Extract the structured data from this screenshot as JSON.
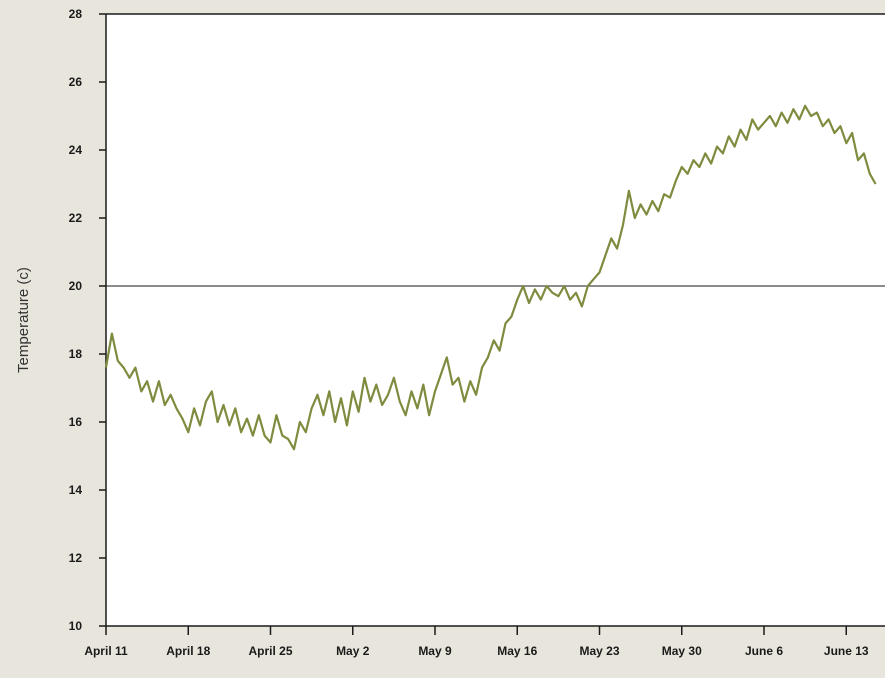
{
  "chart_data": {
    "type": "line",
    "title": "",
    "xlabel": "",
    "ylabel": "Temperature (c)",
    "ylim": [
      10,
      28
    ],
    "yticks": [
      10,
      12,
      14,
      16,
      18,
      20,
      22,
      24,
      26,
      28
    ],
    "reference_line_y": 20,
    "grid": false,
    "xlim": [
      "2010-04-11",
      "2010-06-15"
    ],
    "xticks": [
      {
        "date": "2010-04-11",
        "label": "April 11"
      },
      {
        "date": "2010-04-18",
        "label": "April 18"
      },
      {
        "date": "2010-04-25",
        "label": "April 25"
      },
      {
        "date": "2010-05-02",
        "label": "May 2"
      },
      {
        "date": "2010-05-09",
        "label": "May 9"
      },
      {
        "date": "2010-05-16",
        "label": "May 16"
      },
      {
        "date": "2010-05-23",
        "label": "May 23"
      },
      {
        "date": "2010-05-30",
        "label": "May 30"
      },
      {
        "date": "2010-06-06",
        "label": "June 6"
      },
      {
        "date": "2010-06-13",
        "label": "June 13"
      }
    ],
    "series": [
      {
        "color": "#7d8c3e",
        "points": [
          [
            "2010-04-11",
            17.6
          ],
          [
            "2010-04-11",
            18.6
          ],
          [
            "2010-04-12",
            17.8
          ],
          [
            "2010-04-12",
            17.6
          ],
          [
            "2010-04-13",
            17.3
          ],
          [
            "2010-04-13",
            17.6
          ],
          [
            "2010-04-14",
            16.9
          ],
          [
            "2010-04-14",
            17.2
          ],
          [
            "2010-04-15",
            16.6
          ],
          [
            "2010-04-15",
            17.2
          ],
          [
            "2010-04-16",
            16.5
          ],
          [
            "2010-04-16",
            16.8
          ],
          [
            "2010-04-17",
            16.4
          ],
          [
            "2010-04-17",
            16.1
          ],
          [
            "2010-04-18",
            15.7
          ],
          [
            "2010-04-18",
            16.4
          ],
          [
            "2010-04-19",
            15.9
          ],
          [
            "2010-04-19",
            16.6
          ],
          [
            "2010-04-20",
            16.9
          ],
          [
            "2010-04-20",
            16.0
          ],
          [
            "2010-04-21",
            16.5
          ],
          [
            "2010-04-21",
            15.9
          ],
          [
            "2010-04-22",
            16.4
          ],
          [
            "2010-04-22",
            15.7
          ],
          [
            "2010-04-23",
            16.1
          ],
          [
            "2010-04-23",
            15.6
          ],
          [
            "2010-04-24",
            16.2
          ],
          [
            "2010-04-24",
            15.6
          ],
          [
            "2010-04-25",
            15.4
          ],
          [
            "2010-04-25",
            16.2
          ],
          [
            "2010-04-26",
            15.6
          ],
          [
            "2010-04-26",
            15.5
          ],
          [
            "2010-04-27",
            15.2
          ],
          [
            "2010-04-27",
            16.0
          ],
          [
            "2010-04-28",
            15.7
          ],
          [
            "2010-04-28",
            16.4
          ],
          [
            "2010-04-29",
            16.8
          ],
          [
            "2010-04-29",
            16.2
          ],
          [
            "2010-04-30",
            16.9
          ],
          [
            "2010-04-30",
            16.0
          ],
          [
            "2010-05-01",
            16.7
          ],
          [
            "2010-05-01",
            15.9
          ],
          [
            "2010-05-02",
            16.9
          ],
          [
            "2010-05-02",
            16.3
          ],
          [
            "2010-05-03",
            17.3
          ],
          [
            "2010-05-03",
            16.6
          ],
          [
            "2010-05-04",
            17.1
          ],
          [
            "2010-05-04",
            16.5
          ],
          [
            "2010-05-05",
            16.8
          ],
          [
            "2010-05-05",
            17.3
          ],
          [
            "2010-05-06",
            16.6
          ],
          [
            "2010-05-06",
            16.2
          ],
          [
            "2010-05-07",
            16.9
          ],
          [
            "2010-05-07",
            16.4
          ],
          [
            "2010-05-08",
            17.1
          ],
          [
            "2010-05-08",
            16.2
          ],
          [
            "2010-05-09",
            16.9
          ],
          [
            "2010-05-09",
            17.4
          ],
          [
            "2010-05-10",
            17.9
          ],
          [
            "2010-05-10",
            17.1
          ],
          [
            "2010-05-11",
            17.3
          ],
          [
            "2010-05-11",
            16.6
          ],
          [
            "2010-05-12",
            17.2
          ],
          [
            "2010-05-12",
            16.8
          ],
          [
            "2010-05-13",
            17.6
          ],
          [
            "2010-05-13",
            17.9
          ],
          [
            "2010-05-14",
            18.4
          ],
          [
            "2010-05-14",
            18.1
          ],
          [
            "2010-05-15",
            18.9
          ],
          [
            "2010-05-15",
            19.1
          ],
          [
            "2010-05-16",
            19.6
          ],
          [
            "2010-05-16",
            20.0
          ],
          [
            "2010-05-17",
            19.5
          ],
          [
            "2010-05-17",
            19.9
          ],
          [
            "2010-05-18",
            19.6
          ],
          [
            "2010-05-18",
            20.0
          ],
          [
            "2010-05-19",
            19.8
          ],
          [
            "2010-05-19",
            19.7
          ],
          [
            "2010-05-20",
            20.0
          ],
          [
            "2010-05-20",
            19.6
          ],
          [
            "2010-05-21",
            19.8
          ],
          [
            "2010-05-21",
            19.4
          ],
          [
            "2010-05-22",
            20.0
          ],
          [
            "2010-05-22",
            20.2
          ],
          [
            "2010-05-23",
            20.4
          ],
          [
            "2010-05-23",
            20.9
          ],
          [
            "2010-05-24",
            21.4
          ],
          [
            "2010-05-24",
            21.1
          ],
          [
            "2010-05-25",
            21.8
          ],
          [
            "2010-05-25",
            22.8
          ],
          [
            "2010-05-26",
            22.0
          ],
          [
            "2010-05-26",
            22.4
          ],
          [
            "2010-05-27",
            22.1
          ],
          [
            "2010-05-27",
            22.5
          ],
          [
            "2010-05-28",
            22.2
          ],
          [
            "2010-05-28",
            22.7
          ],
          [
            "2010-05-29",
            22.6
          ],
          [
            "2010-05-29",
            23.1
          ],
          [
            "2010-05-30",
            23.5
          ],
          [
            "2010-05-30",
            23.3
          ],
          [
            "2010-05-31",
            23.7
          ],
          [
            "2010-05-31",
            23.5
          ],
          [
            "2010-06-01",
            23.9
          ],
          [
            "2010-06-01",
            23.6
          ],
          [
            "2010-06-02",
            24.1
          ],
          [
            "2010-06-02",
            23.9
          ],
          [
            "2010-06-03",
            24.4
          ],
          [
            "2010-06-03",
            24.1
          ],
          [
            "2010-06-04",
            24.6
          ],
          [
            "2010-06-04",
            24.3
          ],
          [
            "2010-06-05",
            24.9
          ],
          [
            "2010-06-05",
            24.6
          ],
          [
            "2010-06-06",
            24.8
          ],
          [
            "2010-06-06",
            25.0
          ],
          [
            "2010-06-07",
            24.7
          ],
          [
            "2010-06-07",
            25.1
          ],
          [
            "2010-06-08",
            24.8
          ],
          [
            "2010-06-08",
            25.2
          ],
          [
            "2010-06-09",
            24.9
          ],
          [
            "2010-06-09",
            25.3
          ],
          [
            "2010-06-10",
            25.0
          ],
          [
            "2010-06-10",
            25.1
          ],
          [
            "2010-06-11",
            24.7
          ],
          [
            "2010-06-11",
            24.9
          ],
          [
            "2010-06-12",
            24.5
          ],
          [
            "2010-06-12",
            24.7
          ],
          [
            "2010-06-13",
            24.2
          ],
          [
            "2010-06-13",
            24.5
          ],
          [
            "2010-06-14",
            23.7
          ],
          [
            "2010-06-14",
            23.9
          ],
          [
            "2010-06-15",
            23.3
          ],
          [
            "2010-06-15",
            23.0
          ]
        ]
      }
    ]
  }
}
